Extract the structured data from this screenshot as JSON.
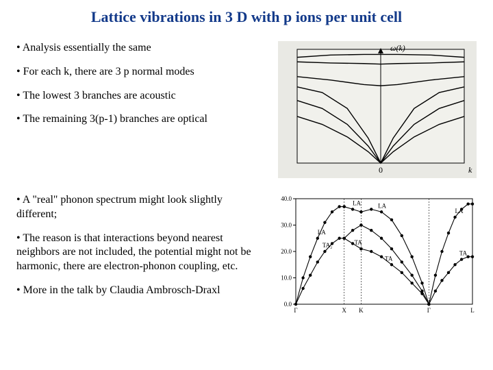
{
  "title": "Lattice vibrations in 3 D with p ions per unit cell",
  "bullets_top": [
    "• Analysis essentially the same",
    "• For each k, there are 3 p normal modes",
    "• The lowest 3 branches are acoustic",
    "• The remaining 3(p-1) branches are optical"
  ],
  "bullets_bottom": [
    "• A \"real\" phonon spectrum might look slightly different;",
    "• The reason is that interactions beyond nearest neighbors are not included, the potential might not be harmonic, there are electron-phonon coupling, etc.",
    "• More in the talk by Claudia Ambrosch-Draxl"
  ],
  "fig1": {
    "type": "line",
    "background_color": "#e9e9e4",
    "axis_color": "#000000",
    "line_color": "#000000",
    "line_width": 1.4,
    "ylabel": "ω(k)",
    "xlabel": "k",
    "x_origin_label": "0",
    "xlim": [
      -1,
      1
    ],
    "ylim": [
      0,
      10
    ],
    "curves": [
      {
        "name": "optical-1",
        "pts": [
          [
            -1,
            9.3
          ],
          [
            -0.6,
            9.5
          ],
          [
            -0.2,
            9.55
          ],
          [
            0,
            9.55
          ],
          [
            0.2,
            9.55
          ],
          [
            0.6,
            9.5
          ],
          [
            1,
            9.3
          ]
        ]
      },
      {
        "name": "optical-2",
        "pts": [
          [
            -1,
            8.9
          ],
          [
            -0.6,
            8.8
          ],
          [
            -0.2,
            8.75
          ],
          [
            0,
            8.7
          ],
          [
            0.2,
            8.75
          ],
          [
            0.6,
            8.8
          ],
          [
            1,
            8.9
          ]
        ]
      },
      {
        "name": "optical-3",
        "pts": [
          [
            -1,
            7.6
          ],
          [
            -0.6,
            7.3
          ],
          [
            -0.2,
            6.9
          ],
          [
            0,
            6.8
          ],
          [
            0.2,
            6.9
          ],
          [
            0.6,
            7.3
          ],
          [
            1,
            7.6
          ]
        ]
      },
      {
        "name": "acoustic-1",
        "pts": [
          [
            -1,
            6.7
          ],
          [
            -0.7,
            6.2
          ],
          [
            -0.4,
            4.8
          ],
          [
            -0.15,
            2.2
          ],
          [
            0,
            0
          ],
          [
            0.15,
            2.2
          ],
          [
            0.4,
            4.8
          ],
          [
            0.7,
            6.2
          ],
          [
            1,
            6.7
          ]
        ]
      },
      {
        "name": "acoustic-2",
        "pts": [
          [
            -1,
            5.5
          ],
          [
            -0.7,
            4.8
          ],
          [
            -0.4,
            3.4
          ],
          [
            -0.15,
            1.5
          ],
          [
            0,
            0
          ],
          [
            0.15,
            1.5
          ],
          [
            0.4,
            3.4
          ],
          [
            0.7,
            4.8
          ],
          [
            1,
            5.5
          ]
        ]
      },
      {
        "name": "acoustic-3",
        "pts": [
          [
            -1,
            4.1
          ],
          [
            -0.7,
            3.4
          ],
          [
            -0.4,
            2.3
          ],
          [
            -0.15,
            1.0
          ],
          [
            0,
            0
          ],
          [
            0.15,
            1.0
          ],
          [
            0.4,
            2.3
          ],
          [
            0.7,
            3.4
          ],
          [
            1,
            4.1
          ]
        ]
      }
    ]
  },
  "fig2": {
    "type": "line+scatter",
    "background_color": "#ffffff",
    "axis_color": "#000000",
    "line_color": "#000000",
    "line_width": 1.1,
    "marker_color": "#000000",
    "marker_radius": 2.2,
    "font_size": 9,
    "ylim": [
      0,
      40
    ],
    "ytick_step": 10,
    "yticks": [
      0.0,
      10.0,
      20.0,
      30.0,
      40.0
    ],
    "x_sections": [
      {
        "label_left": "Γ",
        "label_right": "X",
        "width": 1.0
      },
      {
        "label_left": "X",
        "label_right": "K",
        "width": 0.35
      },
      {
        "label_left": "K",
        "label_right": "Γ",
        "width": 1.4
      },
      {
        "label_left": "Γ",
        "label_right": "L",
        "width": 0.9
      }
    ],
    "branches": [
      {
        "name": "LA-GX",
        "section": 0,
        "tag": "LA",
        "tag_at": 0.45,
        "pts": [
          [
            0,
            0
          ],
          [
            0.15,
            10
          ],
          [
            0.3,
            18
          ],
          [
            0.45,
            25
          ],
          [
            0.6,
            31
          ],
          [
            0.75,
            35
          ],
          [
            0.9,
            37
          ],
          [
            1.0,
            37
          ]
        ]
      },
      {
        "name": "TA2-GX",
        "section": 0,
        "tag": "TA₂",
        "tag_at": 0.55,
        "pts": [
          [
            0,
            0
          ],
          [
            0.15,
            6
          ],
          [
            0.3,
            11
          ],
          [
            0.45,
            16
          ],
          [
            0.6,
            20
          ],
          [
            0.75,
            23
          ],
          [
            0.9,
            25
          ],
          [
            1.0,
            25
          ]
        ]
      },
      {
        "name": "LA-XK",
        "section": 1,
        "tag": "LA",
        "tag_at": 0.5,
        "pts": [
          [
            0,
            37
          ],
          [
            0.5,
            36
          ],
          [
            1.0,
            35
          ]
        ]
      },
      {
        "name": "TA-XK-upper",
        "section": 1,
        "tag": "",
        "tag_at": 0,
        "pts": [
          [
            0,
            25
          ],
          [
            0.5,
            28
          ],
          [
            1.0,
            30
          ]
        ]
      },
      {
        "name": "TA-XK-lower",
        "section": 1,
        "tag": "TA",
        "tag_at": 0.6,
        "pts": [
          [
            0,
            25
          ],
          [
            0.5,
            23
          ],
          [
            1.0,
            21
          ]
        ]
      },
      {
        "name": "LA-KG",
        "section": 2,
        "tag": "LA",
        "tag_at": 0.25,
        "pts": [
          [
            0,
            35
          ],
          [
            0.15,
            36
          ],
          [
            0.3,
            35
          ],
          [
            0.45,
            32
          ],
          [
            0.6,
            26
          ],
          [
            0.75,
            18
          ],
          [
            0.9,
            8
          ],
          [
            1.0,
            0
          ]
        ]
      },
      {
        "name": "TA-KG-upper",
        "section": 2,
        "tag": "",
        "tag_at": 0,
        "pts": [
          [
            0,
            30
          ],
          [
            0.15,
            28
          ],
          [
            0.3,
            25
          ],
          [
            0.45,
            21
          ],
          [
            0.6,
            16
          ],
          [
            0.75,
            11
          ],
          [
            0.9,
            5
          ],
          [
            1.0,
            0
          ]
        ]
      },
      {
        "name": "TA-KG-lower",
        "section": 2,
        "tag": "TA",
        "tag_at": 0.35,
        "pts": [
          [
            0,
            21
          ],
          [
            0.15,
            20
          ],
          [
            0.3,
            18
          ],
          [
            0.45,
            15
          ],
          [
            0.6,
            12
          ],
          [
            0.75,
            8
          ],
          [
            0.9,
            4
          ],
          [
            1.0,
            0
          ]
        ]
      },
      {
        "name": "LA-GL",
        "section": 3,
        "tag": "LA",
        "tag_at": 0.6,
        "pts": [
          [
            0,
            0
          ],
          [
            0.15,
            11
          ],
          [
            0.3,
            20
          ],
          [
            0.45,
            27
          ],
          [
            0.6,
            33
          ],
          [
            0.75,
            36
          ],
          [
            0.9,
            38
          ],
          [
            1.0,
            38
          ]
        ]
      },
      {
        "name": "TA-GL",
        "section": 3,
        "tag": "TA",
        "tag_at": 0.7,
        "pts": [
          [
            0,
            0
          ],
          [
            0.15,
            5
          ],
          [
            0.3,
            9
          ],
          [
            0.45,
            12
          ],
          [
            0.6,
            15
          ],
          [
            0.75,
            17
          ],
          [
            0.9,
            18
          ],
          [
            1.0,
            18
          ]
        ]
      }
    ]
  }
}
